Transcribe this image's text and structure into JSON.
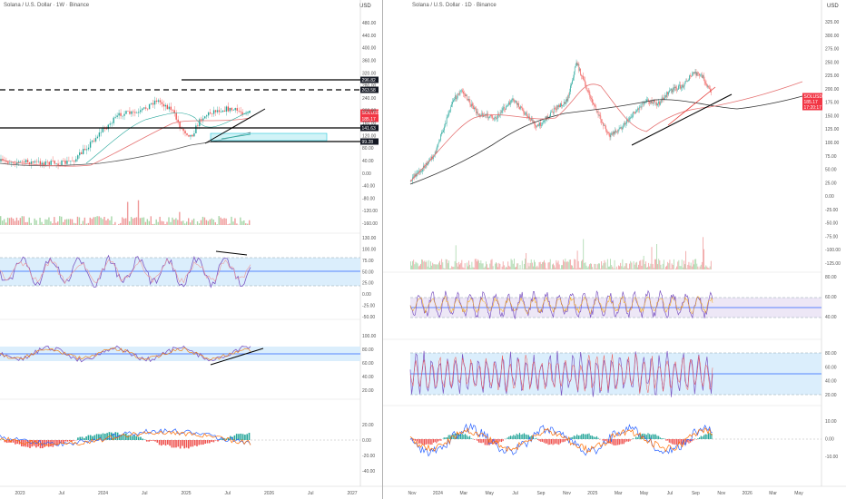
{
  "left": {
    "title": "Solana / U.S. Dollar · 1W · Binance",
    "currency": "USD",
    "price_axis": [
      "480.00",
      "440.00",
      "400.00",
      "360.00",
      "320.00",
      "280.00",
      "240.00",
      "200.00",
      "160.00",
      "120.00",
      "80.00",
      "40.00",
      "0.00",
      "-40.00",
      "-80.00",
      "-120.00",
      "-160.00"
    ],
    "level_labels": [
      {
        "text": "296.82",
        "bg": "#131722"
      },
      {
        "text": "263.58",
        "bg": "#131722"
      },
      {
        "text": "SOLUSD",
        "bg": "#f23645"
      },
      {
        "text": "185.17",
        "bg": "#f23645"
      },
      {
        "text": "141.63",
        "bg": "#131722"
      },
      {
        "text": "99.28",
        "bg": "#131722"
      }
    ],
    "rsi_axis": [
      "130.00",
      "100.00",
      "75.00",
      "50.00",
      "25.00",
      "0.00",
      "-25.00",
      "-50.00"
    ],
    "stoch_axis": [
      "100.00",
      "80.00",
      "60.00",
      "40.00",
      "20.00"
    ],
    "macd_axis": [
      "20.00",
      "0.00",
      "-20.00",
      "-40.00"
    ],
    "time_axis": [
      "2023",
      "Jul",
      "2024",
      "Jul",
      "2025",
      "Jul",
      "2026",
      "Jul",
      "2027"
    ]
  },
  "right": {
    "title": "Solana / U.S. Dollar · 1D · Binance",
    "currency": "USD",
    "price_axis": [
      "325.00",
      "300.00",
      "275.00",
      "250.00",
      "225.00",
      "200.00",
      "175.00",
      "150.00",
      "125.00",
      "100.00",
      "75.00",
      "50.00",
      "25.00",
      "0.00",
      "-25.00",
      "-50.00",
      "-75.00",
      "-100.00",
      "-125.00"
    ],
    "level_labels": [
      {
        "text": "SOLUSD",
        "bg": "#f23645"
      },
      {
        "text": "185.17",
        "bg": "#f23645"
      },
      {
        "text": "17:20:17",
        "bg": "#f23645"
      }
    ],
    "rsi_axis": [
      "80.00",
      "60.00",
      "40.00"
    ],
    "stoch_axis": [
      "80.00",
      "60.00",
      "40.00",
      "20.00"
    ],
    "macd_axis": [
      "10.00",
      "0.00",
      "-10.00"
    ],
    "time_axis": [
      "Nov",
      "2024",
      "Mar",
      "May",
      "Jul",
      "Sep",
      "Nov",
      "2025",
      "Mar",
      "May",
      "Jul",
      "Sep",
      "Nov",
      "2026",
      "Mar",
      "May"
    ]
  },
  "colors": {
    "up": "#26a69a",
    "down": "#ef5350",
    "rsi": "#7e57c2",
    "rsi_ma": "#f7a600",
    "band": "#dbeefc",
    "mid": "#2962ff",
    "zone": "#b2ebf2"
  }
}
